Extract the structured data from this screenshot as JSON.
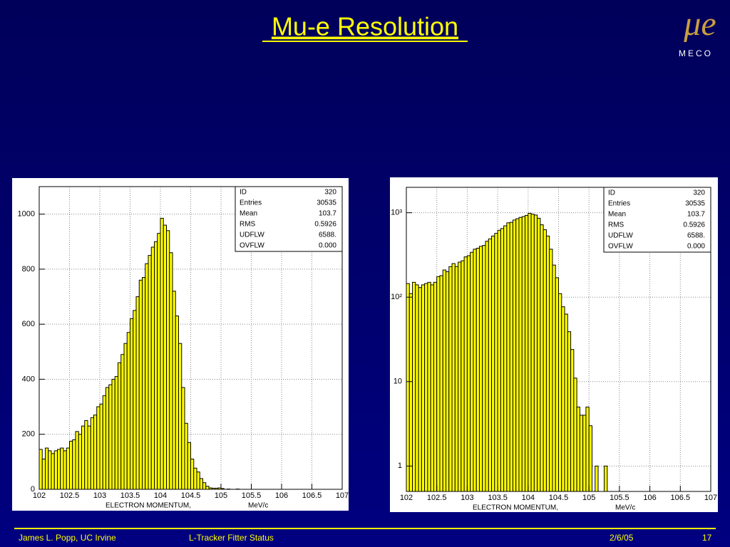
{
  "header": {
    "title": "Mu-e Resolution",
    "logo": {
      "symbol": "μe",
      "name": "MECO"
    }
  },
  "footer": {
    "author": "James L. Popp, UC Irvine",
    "topic": "L-Tracker Fitter Status",
    "date": "2/6/05",
    "page": "17"
  },
  "chart_data": [
    {
      "type": "histogram",
      "xlabel": "ELECTRON MOMENTUM,",
      "xunit": "MeV/c",
      "color": "#ffff00",
      "grid": true,
      "ylog": false,
      "stats": [
        [
          "ID",
          "320"
        ],
        [
          "Entries",
          "30535"
        ],
        [
          "Mean",
          "103.7"
        ],
        [
          "RMS",
          "0.5926"
        ],
        [
          "UDFLW",
          "6588."
        ],
        [
          "OVFLW",
          "0.000"
        ]
      ],
      "xlim": [
        102,
        107
      ],
      "xticks": [
        102,
        102.5,
        103,
        103.5,
        104,
        104.5,
        105,
        105.5,
        106,
        106.5,
        107
      ],
      "ylim": [
        0,
        1100
      ],
      "yticks": [
        0,
        200,
        400,
        600,
        800,
        1000
      ],
      "bins": [
        102,
        102.05,
        102.1,
        102.15,
        102.2,
        102.25,
        102.3,
        102.35,
        102.4,
        102.45,
        102.5,
        102.55,
        102.6,
        102.65,
        102.7,
        102.75,
        102.8,
        102.85,
        102.9,
        102.95,
        103,
        103.05,
        103.1,
        103.15,
        103.2,
        103.25,
        103.3,
        103.35,
        103.4,
        103.45,
        103.5,
        103.55,
        103.6,
        103.65,
        103.7,
        103.75,
        103.8,
        103.85,
        103.9,
        103.95,
        104,
        104.05,
        104.1,
        104.15,
        104.2,
        104.25,
        104.3,
        104.35,
        104.4,
        104.45,
        104.5,
        104.55,
        104.6,
        104.65,
        104.7,
        104.75,
        104.8,
        104.85,
        104.9,
        104.95,
        105,
        105.05,
        105.1,
        105.15,
        105.2,
        105.25,
        105.3,
        105.35,
        105.4,
        105.45,
        105.5,
        105.55,
        105.6,
        105.65,
        105.7,
        105.75,
        105.8,
        105.85,
        105.9,
        105.95,
        106,
        106.05,
        106.1,
        106.15,
        106.2,
        106.25,
        106.3,
        106.35,
        106.4,
        106.45,
        106.5,
        106.55,
        106.6,
        106.65,
        106.7,
        106.75,
        106.8,
        106.85,
        106.9,
        106.95,
        107
      ],
      "counts": [
        145,
        110,
        150,
        140,
        130,
        140,
        145,
        150,
        140,
        150,
        175,
        180,
        210,
        200,
        230,
        250,
        230,
        260,
        270,
        300,
        310,
        340,
        370,
        380,
        400,
        410,
        460,
        490,
        530,
        570,
        620,
        650,
        700,
        760,
        770,
        820,
        850,
        880,
        900,
        930,
        985,
        960,
        940,
        860,
        720,
        630,
        530,
        370,
        240,
        170,
        110,
        77,
        63,
        39,
        24,
        11,
        5,
        4,
        4,
        5,
        3,
        0,
        1,
        0,
        0,
        1,
        0,
        0,
        0,
        0,
        0,
        0,
        0,
        0,
        0,
        0,
        0,
        0,
        0,
        0,
        0,
        0,
        0,
        0,
        0,
        0,
        0,
        0,
        0,
        0,
        0,
        0,
        0,
        0,
        0,
        0,
        0,
        0,
        0,
        0
      ]
    },
    {
      "type": "histogram",
      "xlabel": "ELECTRON MOMENTUM,",
      "xunit": "MeV/c",
      "color": "#ffff00",
      "grid": true,
      "ylog": true,
      "stats": [
        [
          "ID",
          "320"
        ],
        [
          "Entries",
          "30535"
        ],
        [
          "Mean",
          "103.7"
        ],
        [
          "RMS",
          "0.5926"
        ],
        [
          "UDFLW",
          "6588."
        ],
        [
          "OVFLW",
          "0.000"
        ]
      ],
      "xlim": [
        102,
        107
      ],
      "xticks": [
        102,
        102.5,
        103,
        103.5,
        104,
        104.5,
        105,
        105.5,
        106,
        106.5,
        107
      ],
      "ylim": [
        0.5,
        2000
      ],
      "yticks": [
        1,
        10,
        {
          "value": 100,
          "label": "10²"
        },
        {
          "value": 1000,
          "label": "10³"
        }
      ],
      "bins": [
        102,
        102.05,
        102.1,
        102.15,
        102.2,
        102.25,
        102.3,
        102.35,
        102.4,
        102.45,
        102.5,
        102.55,
        102.6,
        102.65,
        102.7,
        102.75,
        102.8,
        102.85,
        102.9,
        102.95,
        103,
        103.05,
        103.1,
        103.15,
        103.2,
        103.25,
        103.3,
        103.35,
        103.4,
        103.45,
        103.5,
        103.55,
        103.6,
        103.65,
        103.7,
        103.75,
        103.8,
        103.85,
        103.9,
        103.95,
        104,
        104.05,
        104.1,
        104.15,
        104.2,
        104.25,
        104.3,
        104.35,
        104.4,
        104.45,
        104.5,
        104.55,
        104.6,
        104.65,
        104.7,
        104.75,
        104.8,
        104.85,
        104.9,
        104.95,
        105,
        105.05,
        105.1,
        105.15,
        105.2,
        105.25,
        105.3,
        105.35,
        105.4,
        105.45,
        105.5,
        105.55,
        105.6,
        105.65,
        105.7,
        105.75,
        105.8,
        105.85,
        105.9,
        105.95,
        106,
        106.05,
        106.1,
        106.15,
        106.2,
        106.25,
        106.3,
        106.35,
        106.4,
        106.45,
        106.5,
        106.55,
        106.6,
        106.65,
        106.7,
        106.75,
        106.8,
        106.85,
        106.9,
        106.95,
        107
      ],
      "counts": [
        145,
        110,
        150,
        140,
        130,
        140,
        145,
        150,
        140,
        150,
        175,
        180,
        210,
        200,
        230,
        250,
        230,
        260,
        270,
        300,
        310,
        340,
        370,
        380,
        400,
        410,
        460,
        490,
        530,
        570,
        620,
        650,
        700,
        760,
        770,
        820,
        850,
        880,
        900,
        930,
        985,
        960,
        940,
        860,
        720,
        630,
        530,
        370,
        240,
        170,
        110,
        77,
        63,
        39,
        24,
        11,
        5,
        4,
        4,
        5,
        3,
        0,
        1,
        0,
        0,
        1,
        0,
        0,
        0,
        0,
        0,
        0,
        0,
        0,
        0,
        0,
        0,
        0,
        0,
        0,
        0,
        0,
        0,
        0,
        0,
        0,
        0,
        0,
        0,
        0,
        0,
        0,
        0,
        0,
        0,
        0,
        0,
        0,
        0,
        0
      ]
    }
  ]
}
